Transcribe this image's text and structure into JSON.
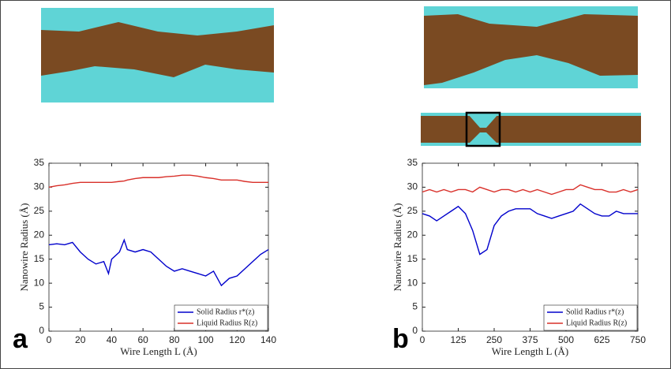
{
  "chart_data": [
    {
      "type": "line",
      "panel": "a",
      "xlabel": "Wire Length L (Å)",
      "ylabel": "Nanowire Radius (Å)",
      "xlim": [
        0,
        140
      ],
      "xticks": [
        0,
        20,
        40,
        60,
        80,
        100,
        120,
        140
      ],
      "ylim": [
        0,
        35
      ],
      "yticks": [
        0,
        5,
        10,
        15,
        20,
        25,
        30,
        35
      ],
      "legend": "lower right",
      "x": [
        0,
        5,
        10,
        15,
        20,
        25,
        30,
        35,
        38,
        40,
        45,
        48,
        50,
        55,
        60,
        65,
        70,
        75,
        80,
        85,
        90,
        95,
        100,
        105,
        110,
        115,
        120,
        125,
        130,
        135,
        140
      ],
      "series": [
        {
          "name": "Solid Radius r*(z)",
          "color": "#0000cc",
          "values": [
            18,
            18.2,
            18,
            18.5,
            16.5,
            15,
            14,
            14.5,
            12,
            15,
            16.5,
            19,
            17,
            16.5,
            17,
            16.5,
            15,
            13.5,
            12.5,
            13,
            12.5,
            12,
            11.5,
            12.5,
            9.5,
            11,
            11.5,
            13,
            14.5,
            16,
            17
          ]
        },
        {
          "name": "Liquid Radius R(z)",
          "color": "#d9302a",
          "values": [
            30,
            30.3,
            30.5,
            30.8,
            31,
            31,
            31,
            31,
            31,
            31,
            31.2,
            31.3,
            31.5,
            31.8,
            32,
            32,
            32,
            32.2,
            32.3,
            32.5,
            32.5,
            32.3,
            32,
            31.8,
            31.5,
            31.5,
            31.5,
            31.2,
            31,
            31,
            31
          ]
        }
      ]
    },
    {
      "type": "line",
      "panel": "b",
      "xlabel": "Wire Length L (Å)",
      "ylabel": "Nanowire Radius (Å)",
      "xlim": [
        0,
        750
      ],
      "xticks": [
        0,
        125,
        250,
        375,
        500,
        625,
        750
      ],
      "ylim": [
        0,
        35
      ],
      "yticks": [
        0,
        5,
        10,
        15,
        20,
        25,
        30,
        35
      ],
      "legend": "lower right",
      "x": [
        0,
        25,
        50,
        75,
        100,
        125,
        150,
        175,
        200,
        225,
        250,
        275,
        300,
        325,
        350,
        375,
        400,
        425,
        450,
        475,
        500,
        525,
        550,
        575,
        600,
        625,
        650,
        675,
        700,
        725,
        750
      ],
      "series": [
        {
          "name": "Solid Radius r*(z)",
          "color": "#0000cc",
          "values": [
            24.5,
            24,
            23,
            24,
            25,
            26,
            24.5,
            21,
            16,
            17,
            22,
            24,
            25,
            25.5,
            25.5,
            25.5,
            24.5,
            24,
            23.5,
            24,
            24.5,
            25,
            26.5,
            25.5,
            24.5,
            24,
            24,
            25,
            24.5,
            24.5,
            24.5
          ]
        },
        {
          "name": "Liquid Radius R(z)",
          "color": "#d9302a",
          "values": [
            29,
            29.5,
            29,
            29.5,
            29,
            29.5,
            29.5,
            29,
            30,
            29.5,
            29,
            29.5,
            29.5,
            29,
            29.5,
            29,
            29.5,
            29,
            28.5,
            29,
            29.5,
            29.5,
            30.5,
            30,
            29.5,
            29.5,
            29,
            29,
            29.5,
            29,
            29.5
          ]
        }
      ]
    }
  ]
}
